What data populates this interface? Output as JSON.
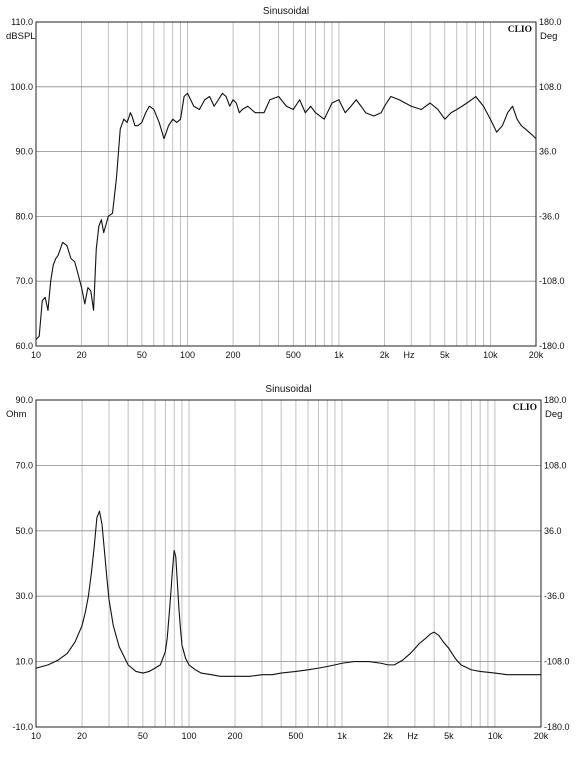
{
  "chart_data": [
    {
      "type": "line",
      "title": "Sinusoidal",
      "brand": "CLIO",
      "ylabel": "dBSPL",
      "y2label": "Deg",
      "xscale": "log",
      "xlim": [
        10,
        20000
      ],
      "ylim": [
        60,
        110
      ],
      "y2lim": [
        -180,
        180
      ],
      "xticks": [
        10,
        20,
        50,
        100,
        200,
        500,
        1000,
        2000,
        5000,
        10000,
        20000
      ],
      "xtick_labels": [
        "10",
        "20",
        "50",
        "100",
        "200",
        "500",
        "1k",
        "2k",
        "5k",
        "10k",
        "20k"
      ],
      "x_unit": "Hz",
      "yticks": [
        60,
        70,
        80,
        90,
        100,
        110
      ],
      "ytick_labels": [
        "60.0",
        "70.0",
        "80.0",
        "90.0",
        "100.0",
        "110.0"
      ],
      "y2ticks": [
        -180,
        -108,
        -36,
        36,
        108,
        180
      ],
      "y2tick_labels": [
        "-180.0",
        "-108.0",
        "-36.0",
        "36.0",
        "108.0",
        "180.0"
      ],
      "grid": true,
      "series": [
        {
          "x": [
            10,
            10.5,
            11,
            11.5,
            12,
            12.5,
            13,
            13.5,
            14,
            15,
            16,
            17,
            18,
            19,
            20,
            21,
            22,
            23,
            24,
            25,
            26,
            27,
            28,
            30,
            32,
            34,
            36,
            38,
            40,
            42,
            43,
            45,
            47,
            50,
            53,
            56,
            60,
            65,
            70,
            75,
            80,
            85,
            90,
            95,
            100,
            105,
            110,
            120,
            130,
            140,
            150,
            160,
            170,
            180,
            190,
            200,
            210,
            220,
            230,
            250,
            280,
            320,
            350,
            400,
            450,
            500,
            550,
            600,
            650,
            700,
            800,
            900,
            1000,
            1100,
            1200,
            1300,
            1400,
            1500,
            1700,
            1900,
            2000,
            2200,
            2500,
            3000,
            3500,
            4000,
            4500,
            5000,
            5500,
            6000,
            6500,
            7000,
            7500,
            8000,
            9000,
            10000,
            11000,
            12000,
            13000,
            14000,
            15000,
            16000,
            17000,
            18000,
            19000,
            20000
          ],
          "y": [
            61,
            61.5,
            67,
            67.5,
            65.5,
            70,
            72.5,
            73.5,
            74,
            76,
            75.5,
            73.5,
            73,
            71,
            69,
            66.5,
            69,
            68.5,
            65.5,
            75,
            78.5,
            79.5,
            77.5,
            80,
            80.5,
            86,
            93.5,
            95,
            94.5,
            96,
            95.5,
            94,
            94,
            94.5,
            96,
            97,
            96.5,
            94.5,
            92,
            94,
            95,
            94.5,
            95,
            98.5,
            99,
            98,
            97,
            96.5,
            98,
            98.5,
            97,
            98,
            99,
            98.5,
            97,
            98,
            97.5,
            96,
            96.5,
            97,
            96,
            96,
            98,
            98.5,
            97,
            96.5,
            98,
            96,
            97,
            96,
            95,
            97.5,
            98,
            96,
            97,
            98,
            97,
            96,
            95.5,
            96,
            97,
            98.5,
            98,
            97,
            96.5,
            97.5,
            96.5,
            95,
            96,
            96.5,
            97,
            97.5,
            98,
            98.5,
            97,
            95,
            93,
            94,
            96,
            97,
            95,
            94,
            93.5,
            93,
            92.5,
            92
          ]
        }
      ]
    },
    {
      "type": "line",
      "title": "Sinusoidal",
      "brand": "CLIO",
      "ylabel": "Ohm",
      "y2label": "Deg",
      "xscale": "log",
      "xlim": [
        10,
        20000
      ],
      "ylim": [
        -10,
        90
      ],
      "y2lim": [
        -180,
        180
      ],
      "xticks": [
        10,
        20,
        50,
        100,
        200,
        500,
        1000,
        2000,
        5000,
        10000,
        20000
      ],
      "xtick_labels": [
        "10",
        "20",
        "50",
        "100",
        "200",
        "500",
        "1k",
        "2k",
        "5k",
        "10k",
        "20k"
      ],
      "x_unit": "Hz",
      "yticks": [
        -10,
        10,
        30,
        50,
        70,
        90
      ],
      "ytick_labels": [
        "-10.0",
        "10.0",
        "30.0",
        "50.0",
        "70.0",
        "90.0"
      ],
      "y2ticks": [
        -180,
        -108,
        -36,
        36,
        108,
        180
      ],
      "y2tick_labels": [
        "-180.0",
        "-108.0",
        "-36.0",
        "36.0",
        "108.0",
        "180.0"
      ],
      "grid": true,
      "series": [
        {
          "x": [
            10,
            12,
            14,
            16,
            18,
            20,
            21,
            22,
            23,
            24,
            25,
            26,
            27,
            28,
            29,
            30,
            32,
            35,
            40,
            45,
            50,
            55,
            60,
            65,
            70,
            72,
            75,
            78,
            80,
            82,
            84,
            86,
            88,
            90,
            95,
            100,
            110,
            120,
            140,
            160,
            200,
            250,
            300,
            350,
            400,
            500,
            600,
            700,
            800,
            900,
            1000,
            1200,
            1500,
            1800,
            2000,
            2200,
            2500,
            2800,
            3000,
            3200,
            3500,
            3800,
            4000,
            4300,
            4600,
            5000,
            5500,
            6000,
            7000,
            8000,
            10000,
            12000,
            15000,
            20000
          ],
          "y": [
            8,
            9,
            10.5,
            12.5,
            16,
            21,
            25,
            30,
            37,
            45,
            54,
            56,
            52,
            44,
            36,
            29,
            21,
            14.5,
            9,
            7,
            6.5,
            7,
            8,
            9,
            13,
            17,
            27,
            38,
            44,
            42,
            34,
            26,
            20,
            15,
            11,
            9,
            7.5,
            6.5,
            6,
            5.5,
            5.5,
            5.5,
            6,
            6,
            6.5,
            7,
            7.5,
            8,
            8.5,
            9,
            9.5,
            10,
            10,
            9.5,
            9,
            9,
            10.5,
            12.5,
            14,
            15.5,
            17,
            18.5,
            19,
            18,
            16,
            14,
            11,
            9,
            7.5,
            7,
            6.5,
            6,
            6,
            6
          ]
        }
      ]
    }
  ]
}
